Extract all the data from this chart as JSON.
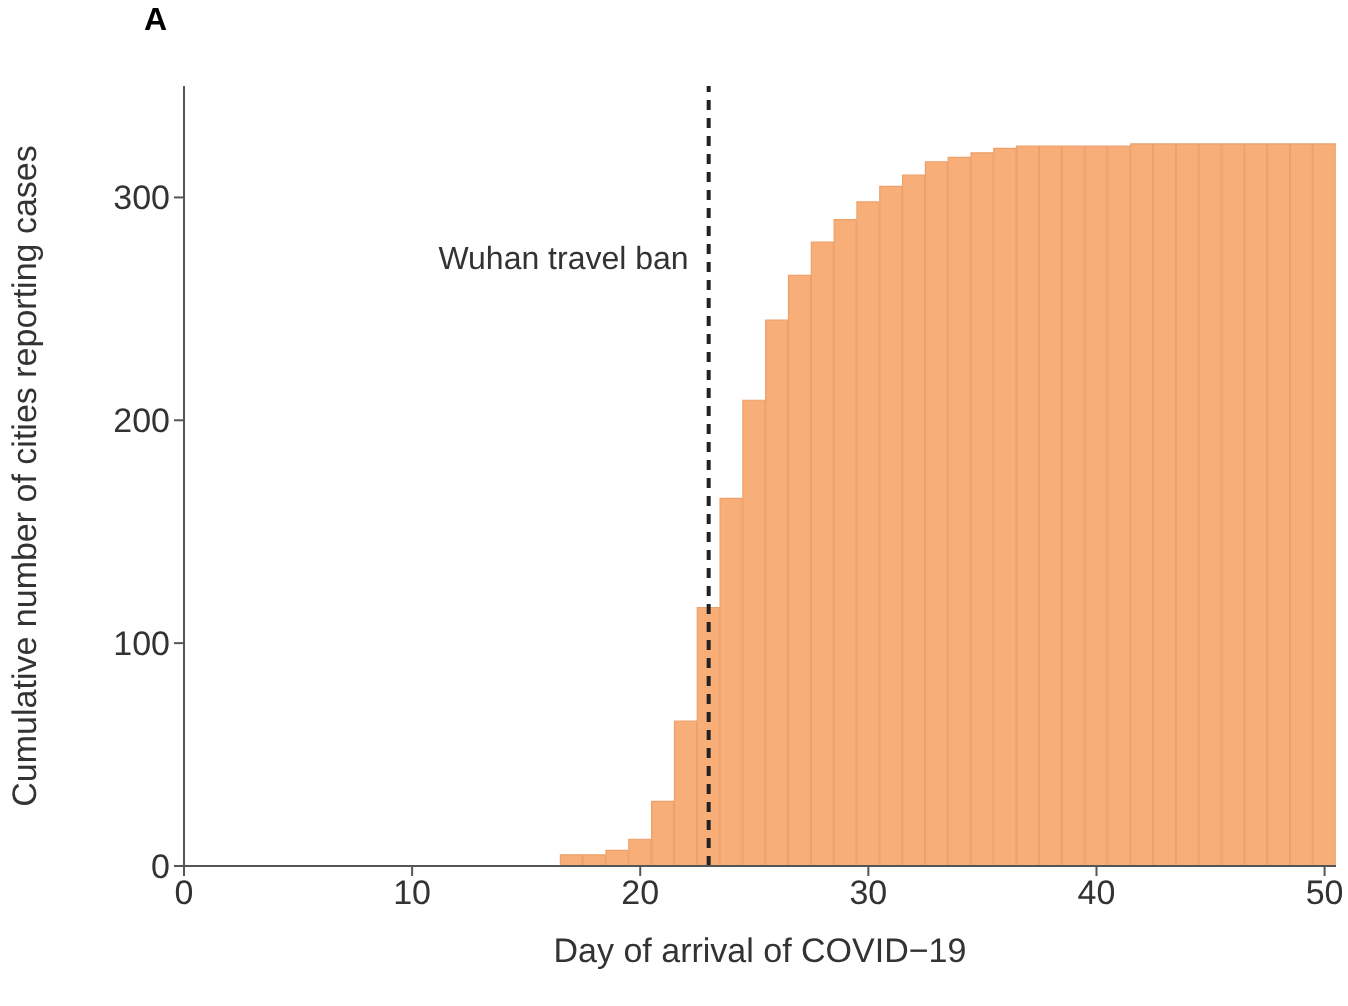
{
  "chart_data": {
    "type": "bar",
    "title": "A",
    "xlabel": "Day of arrival  of COVID−19",
    "ylabel": "Cumulative number of cities reporting cases",
    "x": [
      1,
      2,
      3,
      4,
      5,
      6,
      7,
      8,
      9,
      10,
      11,
      12,
      13,
      14,
      15,
      16,
      17,
      18,
      19,
      20,
      21,
      22,
      23,
      24,
      25,
      26,
      27,
      28,
      29,
      30,
      31,
      32,
      33,
      34,
      35,
      36,
      37,
      38,
      39,
      40,
      41,
      42,
      43,
      44,
      45,
      46,
      47,
      48,
      49,
      50
    ],
    "values": [
      0,
      0,
      0,
      0,
      0,
      0,
      0,
      0,
      0,
      0,
      0,
      0,
      0,
      0,
      0,
      0,
      5,
      5,
      7,
      12,
      29,
      65,
      116,
      165,
      209,
      245,
      265,
      280,
      290,
      298,
      305,
      310,
      316,
      318,
      320,
      322,
      323,
      323,
      323,
      323,
      323,
      324,
      324,
      324,
      324,
      324,
      324,
      324,
      324,
      324
    ],
    "color": "#f7ae78",
    "xlim": [
      0,
      50.5
    ],
    "xticks": [
      0,
      10,
      20,
      30,
      40,
      50
    ],
    "ylim": [
      0,
      350
    ],
    "yticks": [
      0,
      100,
      200,
      300
    ],
    "grid": false,
    "ref_lines": [
      {
        "axis": "x",
        "value": 23,
        "label": "Wuhan travel ban",
        "line_style": "dashed",
        "color": "#222222"
      }
    ]
  }
}
